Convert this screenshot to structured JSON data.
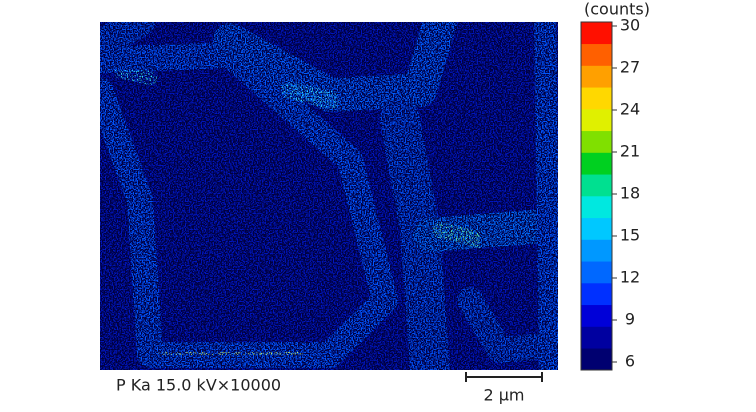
{
  "image": {
    "caption": "P Ka 15.0 kV×10000",
    "scale_bar": "2 μm"
  },
  "colorbar": {
    "unit": "(counts)",
    "range": [
      6,
      30
    ],
    "ticks": [
      6,
      9,
      12,
      15,
      18,
      21,
      24,
      27,
      30
    ],
    "colors": [
      "#000070",
      "#0000a0",
      "#0000d8",
      "#0030ff",
      "#0068ff",
      "#0098ff",
      "#00c8ff",
      "#00e8e0",
      "#00e090",
      "#00d020",
      "#80e000",
      "#e0f000",
      "#ffd800",
      "#ffa000",
      "#ff6000",
      "#ff1000"
    ]
  }
}
